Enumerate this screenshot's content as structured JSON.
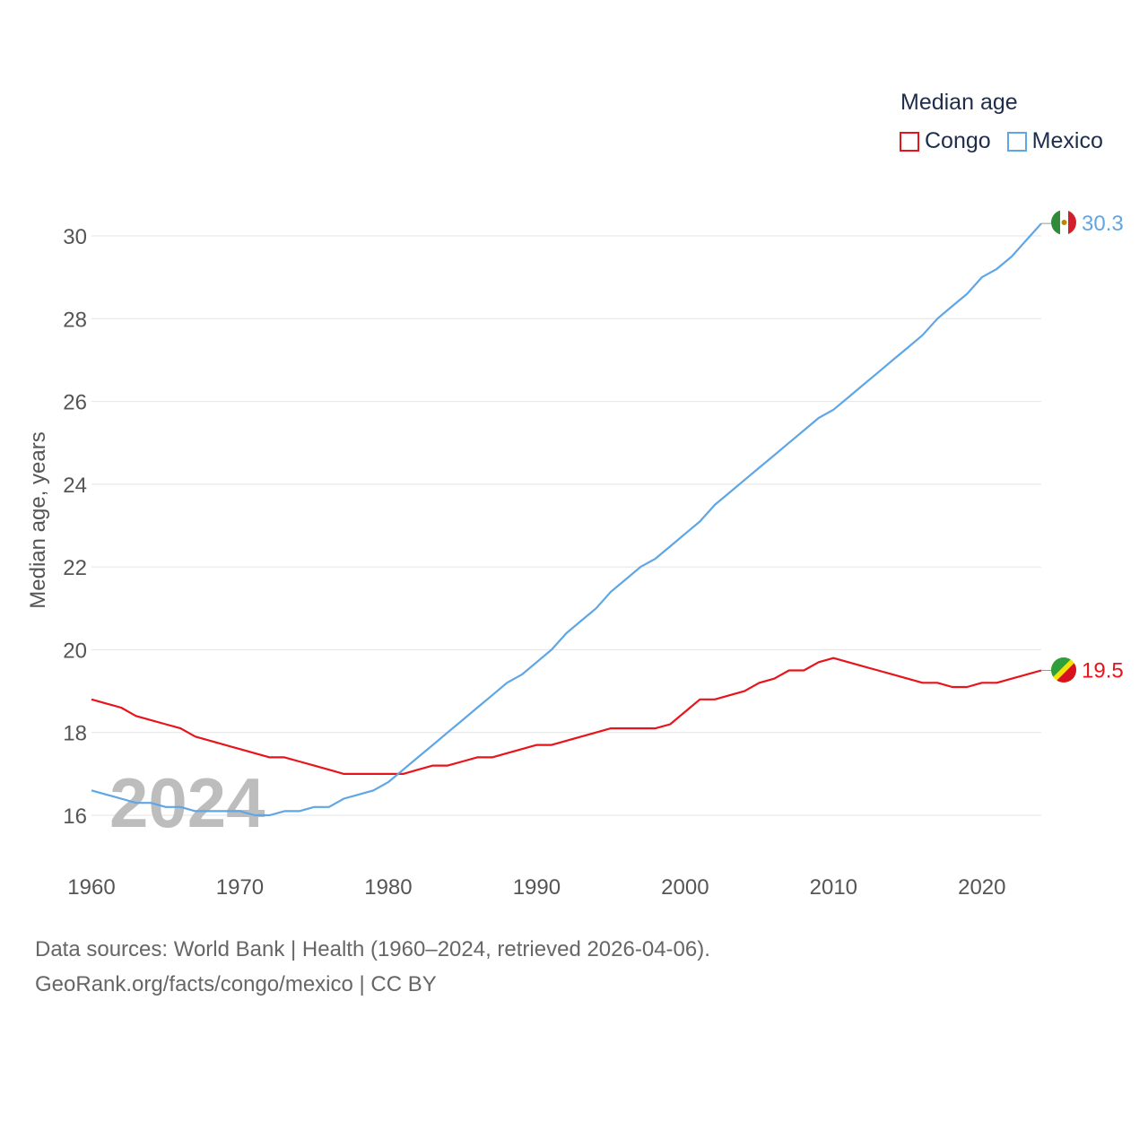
{
  "legend": {
    "title": "Median age",
    "items": [
      {
        "label": "Congo",
        "color": "#e8141b"
      },
      {
        "label": "Mexico",
        "color": "#5ea6e6"
      }
    ]
  },
  "footer": {
    "line1": "Data sources: World Bank | Health (1960–2024, retrieved 2026-04-06).",
    "line2": "GeoRank.org/facts/congo/mexico | CC BY"
  },
  "chart_data": {
    "type": "line",
    "title": "Median age",
    "xlabel": "",
    "ylabel": "Median age, years",
    "xlim": [
      1960,
      2024
    ],
    "ylim": [
      15,
      31
    ],
    "grid": true,
    "watermark": "2024",
    "x_ticks": [
      1960,
      1970,
      1980,
      1990,
      2000,
      2010,
      2020
    ],
    "y_ticks": [
      16,
      18,
      20,
      22,
      24,
      26,
      28,
      30
    ],
    "x": [
      1960,
      1961,
      1962,
      1963,
      1964,
      1965,
      1966,
      1967,
      1968,
      1969,
      1970,
      1971,
      1972,
      1973,
      1974,
      1975,
      1976,
      1977,
      1978,
      1979,
      1980,
      1981,
      1982,
      1983,
      1984,
      1985,
      1986,
      1987,
      1988,
      1989,
      1990,
      1991,
      1992,
      1993,
      1994,
      1995,
      1996,
      1997,
      1998,
      1999,
      2000,
      2001,
      2002,
      2003,
      2004,
      2005,
      2006,
      2007,
      2008,
      2009,
      2010,
      2011,
      2012,
      2013,
      2014,
      2015,
      2016,
      2017,
      2018,
      2019,
      2020,
      2021,
      2022,
      2023,
      2024
    ],
    "series": [
      {
        "name": "Congo",
        "color": "#e8141b",
        "end_label": "19.5",
        "values": [
          18.8,
          18.7,
          18.6,
          18.4,
          18.3,
          18.2,
          18.1,
          17.9,
          17.8,
          17.7,
          17.6,
          17.5,
          17.4,
          17.4,
          17.3,
          17.2,
          17.1,
          17.0,
          17.0,
          17.0,
          17.0,
          17.0,
          17.1,
          17.2,
          17.2,
          17.3,
          17.4,
          17.4,
          17.5,
          17.6,
          17.7,
          17.7,
          17.8,
          17.9,
          18.0,
          18.1,
          18.1,
          18.1,
          18.1,
          18.2,
          18.5,
          18.8,
          18.8,
          18.9,
          19.0,
          19.2,
          19.3,
          19.5,
          19.5,
          19.7,
          19.8,
          19.7,
          19.6,
          19.5,
          19.4,
          19.3,
          19.2,
          19.2,
          19.1,
          19.1,
          19.2,
          19.2,
          19.3,
          19.4,
          19.5
        ]
      },
      {
        "name": "Mexico",
        "color": "#5ea6e6",
        "end_label": "30.3",
        "values": [
          16.6,
          16.5,
          16.4,
          16.3,
          16.3,
          16.2,
          16.2,
          16.1,
          16.1,
          16.1,
          16.1,
          16.0,
          16.0,
          16.1,
          16.1,
          16.2,
          16.2,
          16.4,
          16.5,
          16.6,
          16.8,
          17.1,
          17.4,
          17.7,
          18.0,
          18.3,
          18.6,
          18.9,
          19.2,
          19.4,
          19.7,
          20.0,
          20.4,
          20.7,
          21.0,
          21.4,
          21.7,
          22.0,
          22.2,
          22.5,
          22.8,
          23.1,
          23.5,
          23.8,
          24.1,
          24.4,
          24.7,
          25.0,
          25.3,
          25.6,
          25.8,
          26.1,
          26.4,
          26.7,
          27.0,
          27.3,
          27.6,
          28.0,
          28.3,
          28.6,
          29.0,
          29.2,
          29.5,
          29.9,
          30.3
        ]
      }
    ]
  }
}
